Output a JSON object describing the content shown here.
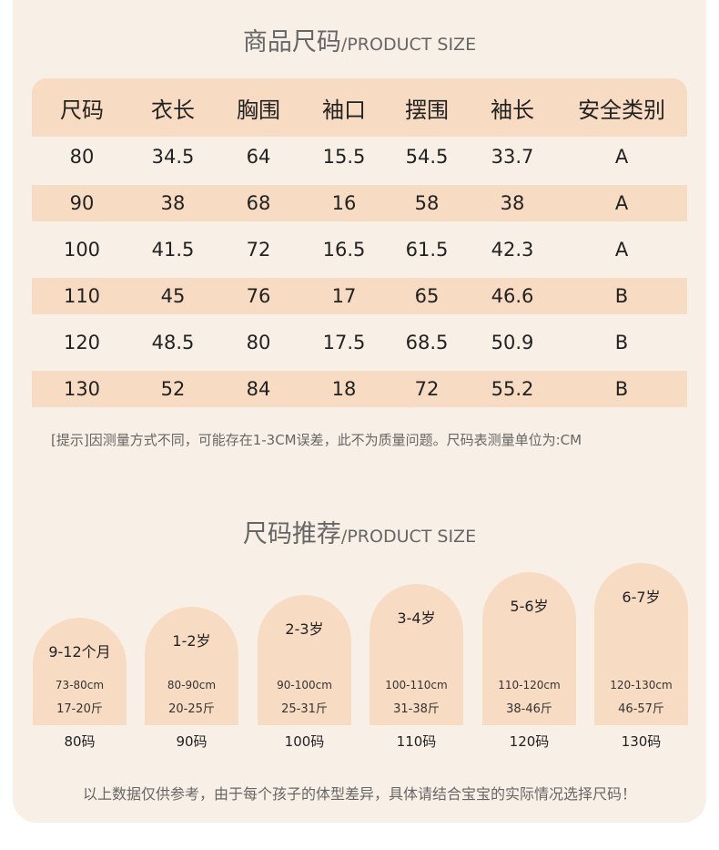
{
  "size_chart": {
    "title_cn": "商品尺码",
    "title_en": "/PRODUCT SIZE",
    "headers": [
      "尺码",
      "衣长",
      "胸围",
      "袖口",
      "摆围",
      "袖长",
      "安全类别"
    ],
    "rows": [
      [
        "80",
        "34.5",
        "64",
        "15.5",
        "54.5",
        "33.7",
        "A"
      ],
      [
        "90",
        "38",
        "68",
        "16",
        "58",
        "38",
        "A"
      ],
      [
        "100",
        "41.5",
        "72",
        "16.5",
        "61.5",
        "42.3",
        "A"
      ],
      [
        "110",
        "45",
        "76",
        "17",
        "65",
        "46.6",
        "B"
      ],
      [
        "120",
        "48.5",
        "80",
        "17.5",
        "68.5",
        "50.9",
        "B"
      ],
      [
        "130",
        "52",
        "84",
        "18",
        "72",
        "55.2",
        "B"
      ]
    ],
    "note": "[提示]因测量方式不同，可能存在1-3CM误差，此不为质量问题。尺码表测量单位为:CM"
  },
  "recommend": {
    "title_cn": "尺码推荐",
    "title_en": "/PRODUCT SIZE",
    "items": [
      {
        "age": "9-12个月",
        "height": "73-80cm",
        "weight": "17-20斤",
        "code": "80码"
      },
      {
        "age": "1-2岁",
        "height": "80-90cm",
        "weight": "20-25斤",
        "code": "90码"
      },
      {
        "age": "2-3岁",
        "height": "90-100cm",
        "weight": "25-31斤",
        "code": "100码"
      },
      {
        "age": "3-4岁",
        "height": "100-110cm",
        "weight": "31-38斤",
        "code": "110码"
      },
      {
        "age": "5-6岁",
        "height": "110-120cm",
        "weight": "38-46斤",
        "code": "120码"
      },
      {
        "age": "6-7岁",
        "height": "120-130cm",
        "weight": "46-57斤",
        "code": "130码"
      }
    ],
    "footer": "以上数据仅供参考，由于每个孩子的体型差异，具体请结合宝宝的实际情况选择尺码！"
  },
  "colors": {
    "background": "#f8efe6",
    "accent": "#f7dcc3",
    "text": "#222222",
    "muted": "#666666"
  }
}
